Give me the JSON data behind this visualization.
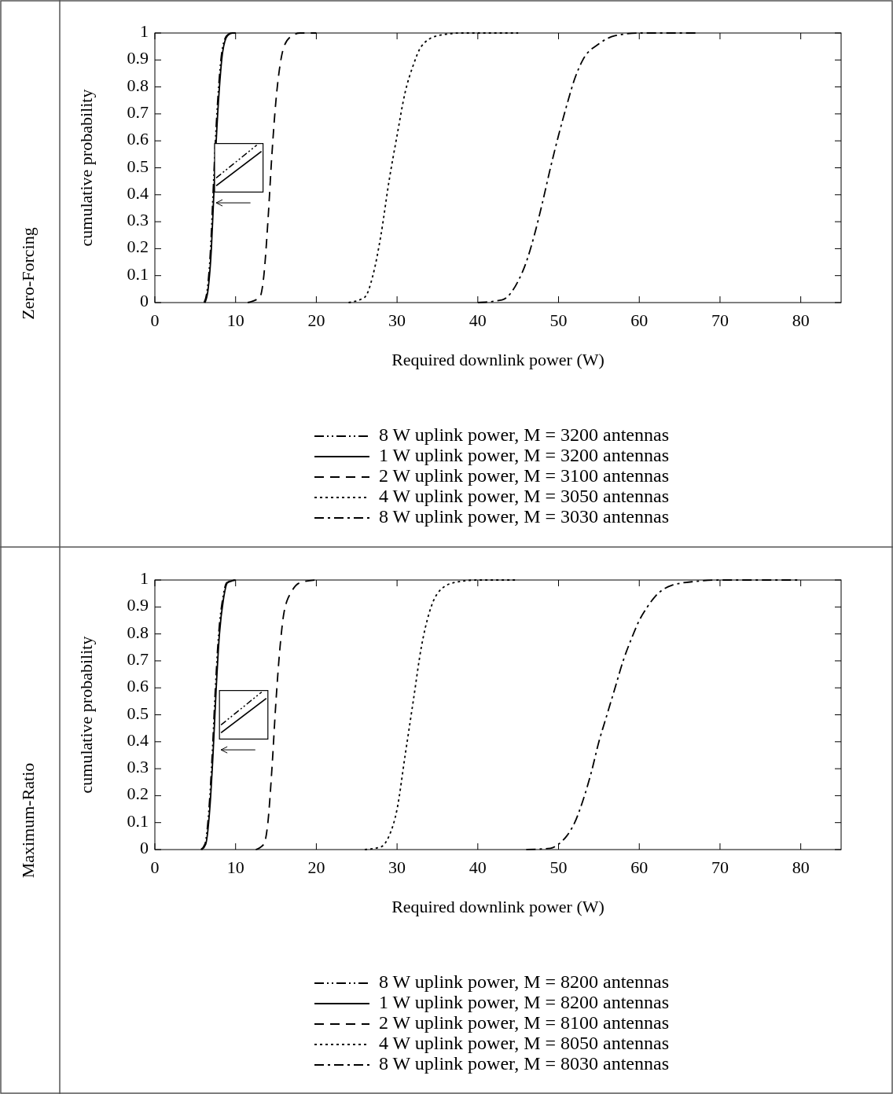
{
  "chart_data": [
    {
      "type": "line",
      "title": "Zero-Forcing",
      "xlabel": "Required downlink power (W)",
      "ylabel": "cumulative probability",
      "xlim": [
        0,
        85
      ],
      "ylim": [
        0,
        1
      ],
      "xticks": [
        0,
        10,
        20,
        30,
        40,
        50,
        60,
        70,
        80
      ],
      "yticks": [
        0,
        0.1,
        0.2,
        0.3,
        0.4,
        0.5,
        0.6,
        0.7,
        0.8,
        0.9,
        1
      ],
      "grid": false,
      "legend": "bottom",
      "marker": "none",
      "series": [
        {
          "name": "8 W uplink power, M = 3200 antennas",
          "color": "#000000",
          "line_style": "dashdotdot",
          "x": [
            6.1,
            6.5,
            6.9,
            7.2,
            7.5,
            7.9,
            8.3,
            8.9,
            9.5,
            10
          ],
          "values": [
            0,
            0.05,
            0.2,
            0.4,
            0.6,
            0.8,
            0.93,
            0.99,
            1,
            1
          ]
        },
        {
          "name": "1 W uplink power, M = 3200 antennas",
          "color": "#000000",
          "line_style": "solid",
          "x": [
            6.2,
            6.6,
            7,
            7.3,
            7.6,
            8,
            8.4,
            9,
            9.6,
            10
          ],
          "values": [
            0,
            0.05,
            0.2,
            0.4,
            0.6,
            0.8,
            0.93,
            0.99,
            1,
            1
          ]
        },
        {
          "name": "2 W uplink power, M = 3100 antennas",
          "color": "#000000",
          "line_style": "dashed",
          "x": [
            11.5,
            13,
            13.5,
            14,
            14.5,
            15,
            15.5,
            16,
            17,
            18,
            20
          ],
          "values": [
            0,
            0.02,
            0.1,
            0.3,
            0.55,
            0.75,
            0.88,
            0.95,
            0.99,
            1,
            1
          ]
        },
        {
          "name": "4 W uplink power, M = 3050 antennas",
          "color": "#000000",
          "line_style": "dotted",
          "x": [
            24,
            26,
            27,
            28,
            29,
            30,
            31,
            32,
            33,
            35,
            38,
            45
          ],
          "values": [
            0,
            0.02,
            0.1,
            0.25,
            0.45,
            0.62,
            0.78,
            0.88,
            0.95,
            0.99,
            1,
            1
          ]
        },
        {
          "name": "8 W uplink power, M = 3030 antennas",
          "color": "#000000",
          "line_style": "dashdot",
          "x": [
            40,
            43,
            45,
            46,
            47,
            48,
            49,
            50,
            51,
            52,
            53,
            55,
            57,
            60,
            67
          ],
          "values": [
            0,
            0.01,
            0.08,
            0.15,
            0.25,
            0.37,
            0.5,
            0.62,
            0.73,
            0.83,
            0.9,
            0.96,
            0.99,
            1,
            1
          ]
        }
      ]
    },
    {
      "type": "line",
      "title": "Maximum-Ratio",
      "xlabel": "Required downlink power (W)",
      "ylabel": "cumulative probability",
      "xlim": [
        0,
        85
      ],
      "ylim": [
        0,
        1
      ],
      "xticks": [
        0,
        10,
        20,
        30,
        40,
        50,
        60,
        70,
        80
      ],
      "yticks": [
        0,
        0.1,
        0.2,
        0.3,
        0.4,
        0.5,
        0.6,
        0.7,
        0.8,
        0.9,
        1
      ],
      "grid": false,
      "legend": "bottom",
      "marker": "none",
      "series": [
        {
          "name": "8 W uplink power, M = 8200 antennas",
          "color": "#000000",
          "line_style": "dashdotdot",
          "x": [
            5.7,
            6.2,
            6.7,
            7.1,
            7.5,
            7.9,
            8.4,
            8.9,
            9.9
          ],
          "values": [
            0,
            0.02,
            0.15,
            0.35,
            0.6,
            0.8,
            0.93,
            0.99,
            1
          ]
        },
        {
          "name": "1 W uplink power, M = 8200 antennas",
          "color": "#000000",
          "line_style": "solid",
          "x": [
            5.8,
            6.3,
            6.8,
            7.2,
            7.6,
            8,
            8.5,
            9,
            10
          ],
          "values": [
            0,
            0.02,
            0.15,
            0.35,
            0.6,
            0.8,
            0.93,
            0.99,
            1
          ]
        },
        {
          "name": "2 W uplink power, M = 8100 antennas",
          "color": "#000000",
          "line_style": "dashed",
          "x": [
            12.5,
            13.5,
            14,
            14.5,
            15,
            15.5,
            16,
            17,
            18,
            20
          ],
          "values": [
            0,
            0.02,
            0.1,
            0.3,
            0.55,
            0.75,
            0.88,
            0.96,
            0.99,
            1
          ]
        },
        {
          "name": "4 W uplink power, M = 8050 antennas",
          "color": "#000000",
          "line_style": "dotted",
          "x": [
            26,
            28,
            29,
            30,
            31,
            32,
            33,
            34,
            35,
            37,
            40,
            45
          ],
          "values": [
            0,
            0.01,
            0.05,
            0.15,
            0.35,
            0.55,
            0.75,
            0.88,
            0.95,
            0.99,
            1,
            1
          ]
        },
        {
          "name": "8 W uplink power, M = 8030 antennas",
          "color": "#000000",
          "line_style": "dashdot",
          "x": [
            46,
            49,
            50,
            51,
            52,
            53,
            54,
            55,
            56,
            57,
            58,
            59,
            60,
            61,
            62,
            64,
            67,
            70,
            80
          ],
          "values": [
            0,
            0.005,
            0.02,
            0.05,
            0.1,
            0.18,
            0.28,
            0.4,
            0.5,
            0.6,
            0.7,
            0.78,
            0.85,
            0.9,
            0.94,
            0.98,
            0.995,
            1,
            1
          ]
        }
      ]
    }
  ]
}
